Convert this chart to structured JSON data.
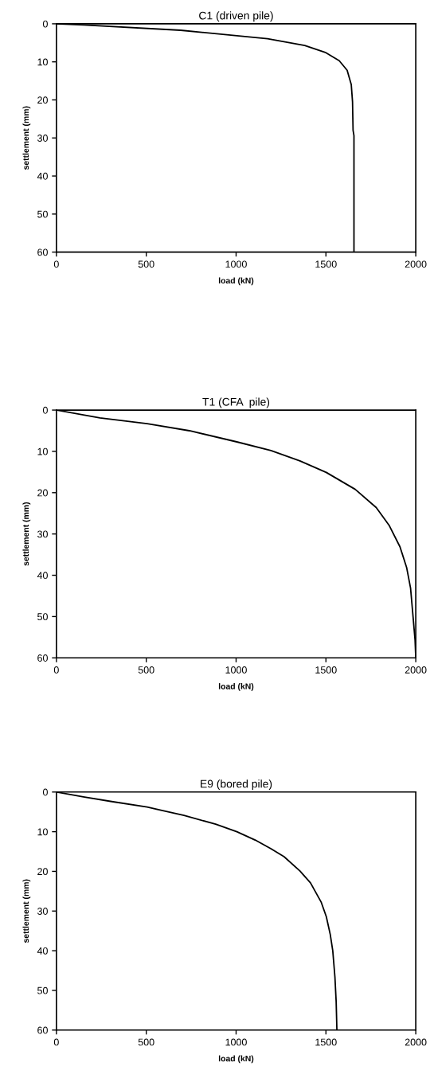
{
  "chart_data": [
    {
      "type": "line",
      "title": "C1 (driven pile)",
      "xlabel": "load (kN)",
      "ylabel": "settlement (mm)",
      "xlim": [
        0,
        2000
      ],
      "xticks": [
        0,
        500,
        1000,
        1500,
        2000
      ],
      "ylim": [
        60,
        0
      ],
      "yticks": [
        0,
        10,
        20,
        30,
        40,
        50,
        60
      ],
      "grid": false,
      "legend": false,
      "series": [
        {
          "color": "#000000",
          "x": [
            0,
            155,
            691,
            1175,
            1382,
            1500,
            1574,
            1618,
            1641,
            1648,
            1651,
            1656,
            1656
          ],
          "values": [
            0,
            0.3,
            1.7,
            3.9,
            5.7,
            7.6,
            9.7,
            12.2,
            16,
            20.5,
            28,
            29.4,
            60
          ]
        }
      ]
    },
    {
      "type": "line",
      "title": "T1 (CFA  pile)",
      "xlabel": "load (kN)",
      "ylabel": "settlement (mm)",
      "xlim": [
        0,
        2000
      ],
      "xticks": [
        0,
        500,
        1000,
        1500,
        2000
      ],
      "ylim": [
        60,
        0
      ],
      "yticks": [
        0,
        10,
        20,
        30,
        40,
        50,
        60
      ],
      "grid": false,
      "legend": false,
      "series": [
        {
          "color": "#000000",
          "x": [
            0,
            242,
            505,
            740,
            1004,
            1194,
            1355,
            1502,
            1663,
            1780,
            1853,
            1912,
            1949,
            1971,
            1985,
            1996,
            2000
          ],
          "values": [
            0,
            1.9,
            3.3,
            5.0,
            7.7,
            9.8,
            12.3,
            15.1,
            19.2,
            23.6,
            28.0,
            33.1,
            38.1,
            43.1,
            50.1,
            55.7,
            60
          ]
        }
      ]
    },
    {
      "type": "line",
      "title": "E9 (bored pile)",
      "xlabel": "load (kN)",
      "ylabel": "settlement (mm)",
      "xlim": [
        0,
        2000
      ],
      "xticks": [
        0,
        500,
        1000,
        1500,
        2000
      ],
      "ylim": [
        60,
        0
      ],
      "yticks": [
        0,
        10,
        20,
        30,
        40,
        50,
        60
      ],
      "grid": false,
      "legend": false,
      "series": [
        {
          "color": "#000000",
          "x": [
            0,
            150,
            308,
            505,
            710,
            886,
            1004,
            1106,
            1194,
            1267,
            1355,
            1414,
            1473,
            1502,
            1524,
            1538,
            1550,
            1557,
            1561
          ],
          "values": [
            0,
            1.2,
            2.4,
            3.8,
            5.9,
            8.1,
            10.0,
            12.1,
            14.3,
            16.3,
            19.9,
            22.9,
            27.7,
            31.4,
            35.9,
            40.0,
            46.6,
            52.9,
            60
          ]
        }
      ]
    }
  ]
}
